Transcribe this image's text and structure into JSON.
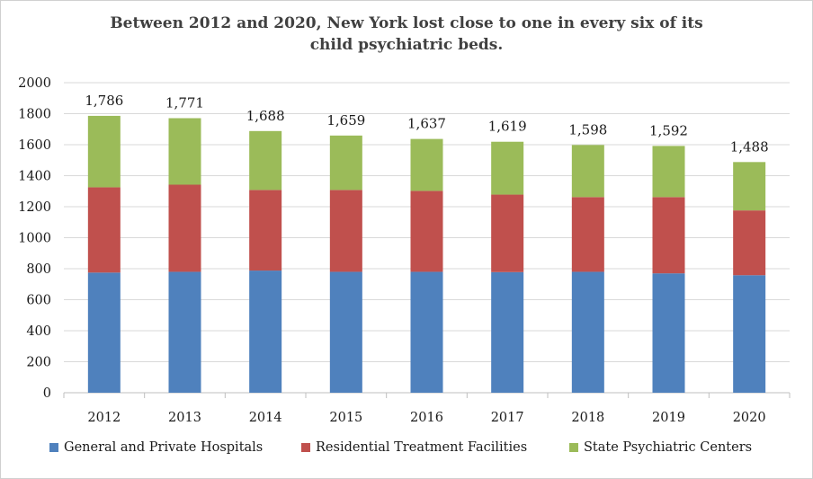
{
  "chart_data": {
    "type": "bar",
    "stacked": true,
    "title_lines": [
      "Between 2012 and 2020, New York lost close to one in every six of its",
      "child psychiatric beds."
    ],
    "categories": [
      "2012",
      "2013",
      "2014",
      "2015",
      "2016",
      "2017",
      "2018",
      "2019",
      "2020"
    ],
    "series": [
      {
        "name": "General and Private Hospitals",
        "color": "#4f81bd",
        "values": [
          775,
          780,
          788,
          780,
          780,
          778,
          780,
          770,
          758
        ]
      },
      {
        "name": "Residential Treatment Facilities",
        "color": "#c0504d",
        "values": [
          550,
          562,
          520,
          528,
          522,
          500,
          482,
          492,
          418
        ]
      },
      {
        "name": "State Psychiatric Centers",
        "color": "#9bbb59",
        "values": [
          461,
          429,
          380,
          351,
          335,
          341,
          336,
          330,
          312
        ]
      }
    ],
    "totals_labels": [
      "1,786",
      "1,771",
      "1,688",
      "1,659",
      "1,637",
      "1,619",
      "1,598",
      "1,592",
      "1,488"
    ],
    "totals": [
      1786,
      1771,
      1688,
      1659,
      1637,
      1619,
      1598,
      1592,
      1488
    ],
    "ylim": [
      0,
      2000
    ],
    "yticks": [
      0,
      200,
      400,
      600,
      800,
      1000,
      1200,
      1400,
      1600,
      1800,
      2000
    ],
    "grid": true,
    "legend_position": "bottom"
  }
}
